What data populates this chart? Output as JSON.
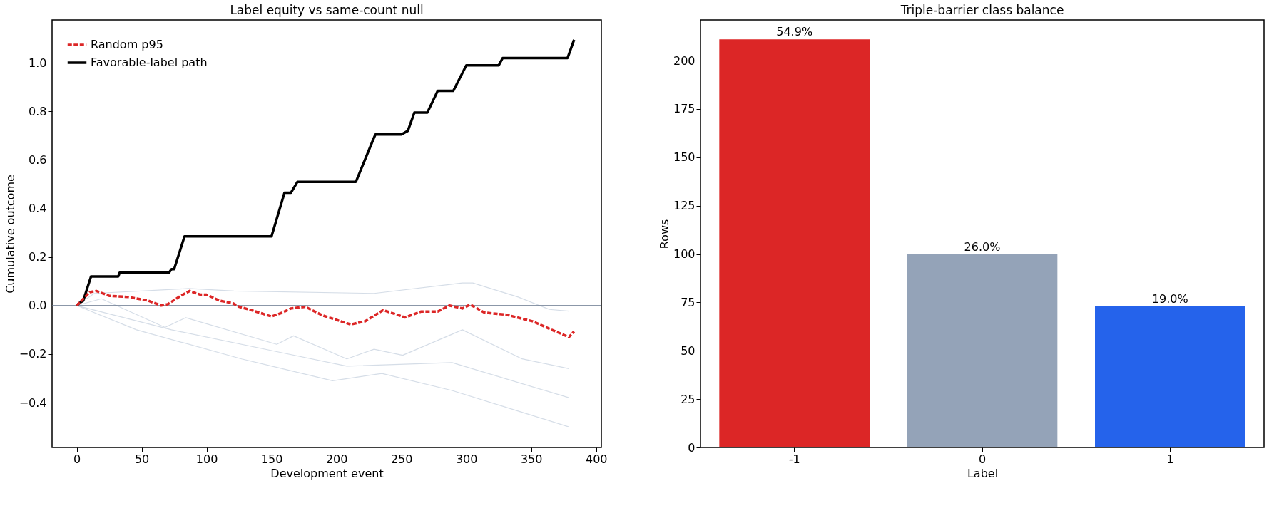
{
  "chart_data": [
    {
      "type": "line",
      "title": "Label equity vs same-count null",
      "xlabel": "Development event",
      "ylabel": "Cumulative outcome",
      "xlim": [
        -19,
        404
      ],
      "ylim": [
        -0.585,
        1.177
      ],
      "xticks": [
        0,
        50,
        100,
        150,
        200,
        250,
        300,
        350,
        400
      ],
      "yticks": [
        {
          "value": -0.4,
          "label": "−0.4"
        },
        {
          "value": -0.2,
          "label": "−0.2"
        },
        {
          "value": 0,
          "label": "0.0"
        },
        {
          "value": 0.2,
          "label": "0.2"
        },
        {
          "value": 0.4,
          "label": "0.4"
        },
        {
          "value": 0.6,
          "label": "0.6"
        },
        {
          "value": 0.8,
          "label": "0.8"
        },
        {
          "value": 1,
          "label": "1.0"
        }
      ],
      "grid": false,
      "legend": "top left",
      "ref_lines": [
        {
          "axis": "y",
          "value": 0,
          "color": "#64748b"
        }
      ],
      "series": [
        {
          "color": "#cbd5e1",
          "line_style": "solid",
          "x": [
            0,
            13.5,
            86,
            121,
            229,
            297,
            305,
            340,
            364,
            379
          ],
          "values": [
            0,
            0.05,
            0.07,
            0.06,
            0.05,
            0.093,
            0.093,
            0.035,
            -0.016,
            -0.023
          ]
        },
        {
          "color": "#cbd5e1",
          "line_style": "solid",
          "x": [
            0,
            19,
            68,
            84,
            154,
            167,
            208,
            229,
            251,
            297,
            343,
            379
          ],
          "values": [
            0,
            0.028,
            -0.09,
            -0.05,
            -0.16,
            -0.125,
            -0.22,
            -0.18,
            -0.205,
            -0.1,
            -0.22,
            -0.26
          ]
        },
        {
          "color": "#cbd5e1",
          "line_style": "solid",
          "x": [
            0,
            73,
            154,
            208,
            289,
            379
          ],
          "values": [
            0,
            -0.1,
            -0.19,
            -0.25,
            -0.235,
            -0.38
          ]
        },
        {
          "color": "#cbd5e1",
          "line_style": "solid",
          "x": [
            0,
            46,
            127,
            197,
            235,
            289,
            343,
            379
          ],
          "values": [
            0,
            -0.1,
            -0.22,
            -0.31,
            -0.28,
            -0.35,
            -0.44,
            -0.5
          ]
        },
        {
          "name": "Random p95",
          "color": "#dc2626",
          "line_style": "dashed",
          "x": [
            0,
            10,
            15,
            25,
            40,
            55,
            65,
            70,
            80,
            87,
            95,
            100,
            110,
            120,
            125,
            135,
            150,
            158,
            165,
            176,
            189,
            211,
            222,
            236,
            253,
            265,
            278,
            287,
            297,
            303,
            314,
            331,
            351,
            368,
            379,
            383
          ],
          "values": [
            0,
            0.055,
            0.06,
            0.04,
            0.035,
            0.02,
            0.0,
            0.005,
            0.04,
            0.06,
            0.045,
            0.045,
            0.02,
            0.01,
            -0.005,
            -0.02,
            -0.045,
            -0.03,
            -0.012,
            -0.005,
            -0.04,
            -0.078,
            -0.065,
            -0.019,
            -0.049,
            -0.025,
            -0.025,
            0.0,
            -0.012,
            0.004,
            -0.029,
            -0.038,
            -0.065,
            -0.105,
            -0.13,
            -0.107
          ]
        },
        {
          "name": "Favorable-label path",
          "color": "#000000",
          "line_style": "solid",
          "x": [
            0,
            2,
            5,
            8,
            11,
            32,
            33,
            71,
            73,
            75,
            83,
            150,
            160,
            165,
            170,
            215,
            228,
            230,
            250,
            255,
            260,
            270,
            278,
            290,
            300,
            325,
            328,
            378,
            383
          ],
          "values": [
            0,
            0.01,
            0.02,
            0.07,
            0.12,
            0.12,
            0.135,
            0.135,
            0.15,
            0.15,
            0.285,
            0.285,
            0.465,
            0.465,
            0.51,
            0.51,
            0.68,
            0.705,
            0.705,
            0.72,
            0.795,
            0.795,
            0.885,
            0.885,
            0.99,
            0.99,
            1.02,
            1.02,
            1.095
          ]
        }
      ]
    },
    {
      "type": "bar",
      "title": "Triple-barrier class balance",
      "xlabel": "Label",
      "ylabel": "Rows",
      "categories": [
        "-1",
        "0",
        "1"
      ],
      "values": [
        211,
        100,
        73
      ],
      "colors": [
        "#dc2626",
        "#94a3b8",
        "#2563eb"
      ],
      "annotations": [
        {
          "text": "54.9%",
          "x": "-1",
          "y": 211
        },
        {
          "text": "26.0%",
          "x": "0",
          "y": 100
        },
        {
          "text": "19.0%",
          "x": "1",
          "y": 73
        }
      ],
      "ylim": [
        0,
        221
      ],
      "yticks": [
        0,
        25,
        50,
        75,
        100,
        125,
        150,
        175,
        200
      ],
      "grid": false
    }
  ]
}
